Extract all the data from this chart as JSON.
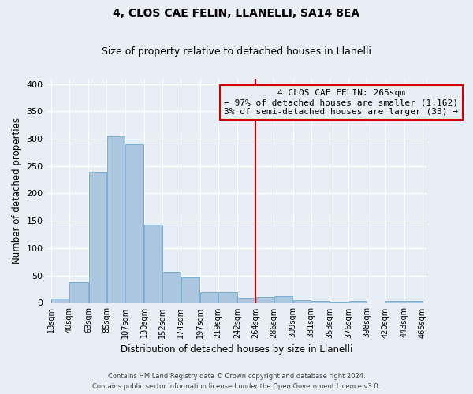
{
  "title": "4, CLOS CAE FELIN, LLANELLI, SA14 8EA",
  "subtitle": "Size of property relative to detached houses in Llanelli",
  "xlabel": "Distribution of detached houses by size in Llanelli",
  "ylabel": "Number of detached properties",
  "bin_labels": [
    "18sqm",
    "40sqm",
    "63sqm",
    "85sqm",
    "107sqm",
    "130sqm",
    "152sqm",
    "174sqm",
    "197sqm",
    "219sqm",
    "242sqm",
    "264sqm",
    "286sqm",
    "309sqm",
    "331sqm",
    "353sqm",
    "376sqm",
    "398sqm",
    "420sqm",
    "443sqm",
    "465sqm"
  ],
  "bar_values": [
    8,
    38,
    240,
    305,
    290,
    143,
    57,
    46,
    20,
    20,
    9,
    10,
    12,
    5,
    3,
    2,
    3,
    0,
    3,
    3
  ],
  "bar_color": "#adc6e0",
  "bar_edge_color": "#7aafd4",
  "bg_color": "#e8eef5",
  "grid_color": "#ffffff",
  "vline_x": 264,
  "vline_color": "#cc0000",
  "annotation_title": "4 CLOS CAE FELIN: 265sqm",
  "annotation_line1": "← 97% of detached houses are smaller (1,162)",
  "annotation_line2": "3% of semi-detached houses are larger (33) →",
  "ylim": [
    0,
    410
  ],
  "bin_edges": [
    18,
    40,
    63,
    85,
    107,
    130,
    152,
    174,
    197,
    219,
    242,
    264,
    286,
    309,
    331,
    353,
    376,
    398,
    420,
    443,
    465
  ],
  "footnote1": "Contains HM Land Registry data © Crown copyright and database right 2024.",
  "footnote2": "Contains public sector information licensed under the Open Government Licence v3.0."
}
